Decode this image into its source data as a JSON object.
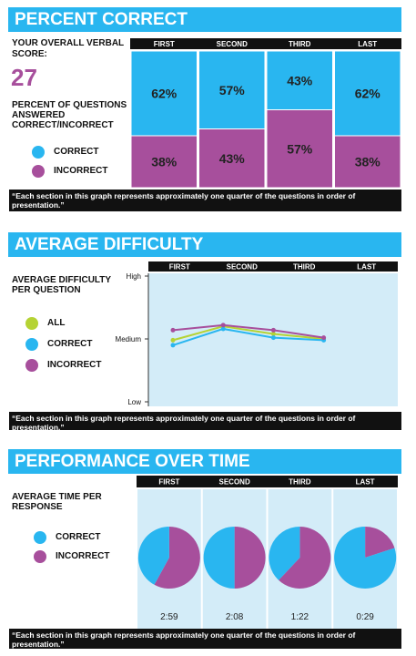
{
  "chart_data": [
    {
      "type": "bar",
      "title": "PERCENT CORRECT",
      "score_label": "YOUR OVERALL VERBAL SCORE:",
      "score": 27,
      "ylabel": "PERCENT OF QUESTIONS ANSWERED CORRECT/INCORRECT",
      "categories": [
        "FIRST",
        "SECOND",
        "THIRD",
        "LAST"
      ],
      "ylim": [
        0,
        100
      ],
      "stacked": true,
      "series": [
        {
          "name": "CORRECT",
          "color": "#29b6f0",
          "values": [
            62,
            57,
            43,
            62
          ],
          "value_labels": [
            "62%",
            "57%",
            "43%",
            "62%"
          ]
        },
        {
          "name": "INCORRECT",
          "color": "#a74f9c",
          "values": [
            38,
            43,
            57,
            38
          ],
          "value_labels": [
            "38%",
            "43%",
            "57%",
            "38%"
          ]
        }
      ],
      "note": "“Each section in this graph represents approximately one quarter of the questions in order of presentation.”"
    },
    {
      "type": "line",
      "title": "AVERAGE DIFFICULTY",
      "ylabel": "AVERAGE DIFFICULTY PER QUESTION",
      "categories": [
        "FIRST",
        "SECOND",
        "THIRD",
        "LAST"
      ],
      "ylim": [
        0,
        10
      ],
      "yticks": [
        {
          "value": 0,
          "label": "Low"
        },
        {
          "value": 5,
          "label": "Medium"
        },
        {
          "value": 10,
          "label": "High"
        }
      ],
      "series": [
        {
          "name": "ALL",
          "color": "#b5d334",
          "values": [
            4.9,
            6.0,
            5.4,
            5.0
          ]
        },
        {
          "name": "CORRECT",
          "color": "#29b6f0",
          "values": [
            4.5,
            5.8,
            5.1,
            4.9
          ]
        },
        {
          "name": "INCORRECT",
          "color": "#a74f9c",
          "values": [
            5.7,
            6.1,
            5.7,
            5.1
          ]
        }
      ],
      "note": "“Each section in this graph represents approximately one quarter of the questions in order of presentation.”"
    },
    {
      "type": "pie",
      "title": "PERFORMANCE OVER TIME",
      "ylabel": "AVERAGE TIME PER RESPONSE",
      "categories": [
        "FIRST",
        "SECOND",
        "THIRD",
        "LAST"
      ],
      "time_labels": [
        "2:59",
        "2:08",
        "1:22",
        "0:29"
      ],
      "series": [
        {
          "name": "CORRECT",
          "color": "#29b6f0",
          "values": [
            42,
            50,
            38,
            80
          ]
        },
        {
          "name": "INCORRECT",
          "color": "#a74f9c",
          "values": [
            58,
            50,
            62,
            20
          ]
        }
      ],
      "note": "“Each section in this graph represents approximately one quarter of the questions in order of presentation.”"
    }
  ]
}
